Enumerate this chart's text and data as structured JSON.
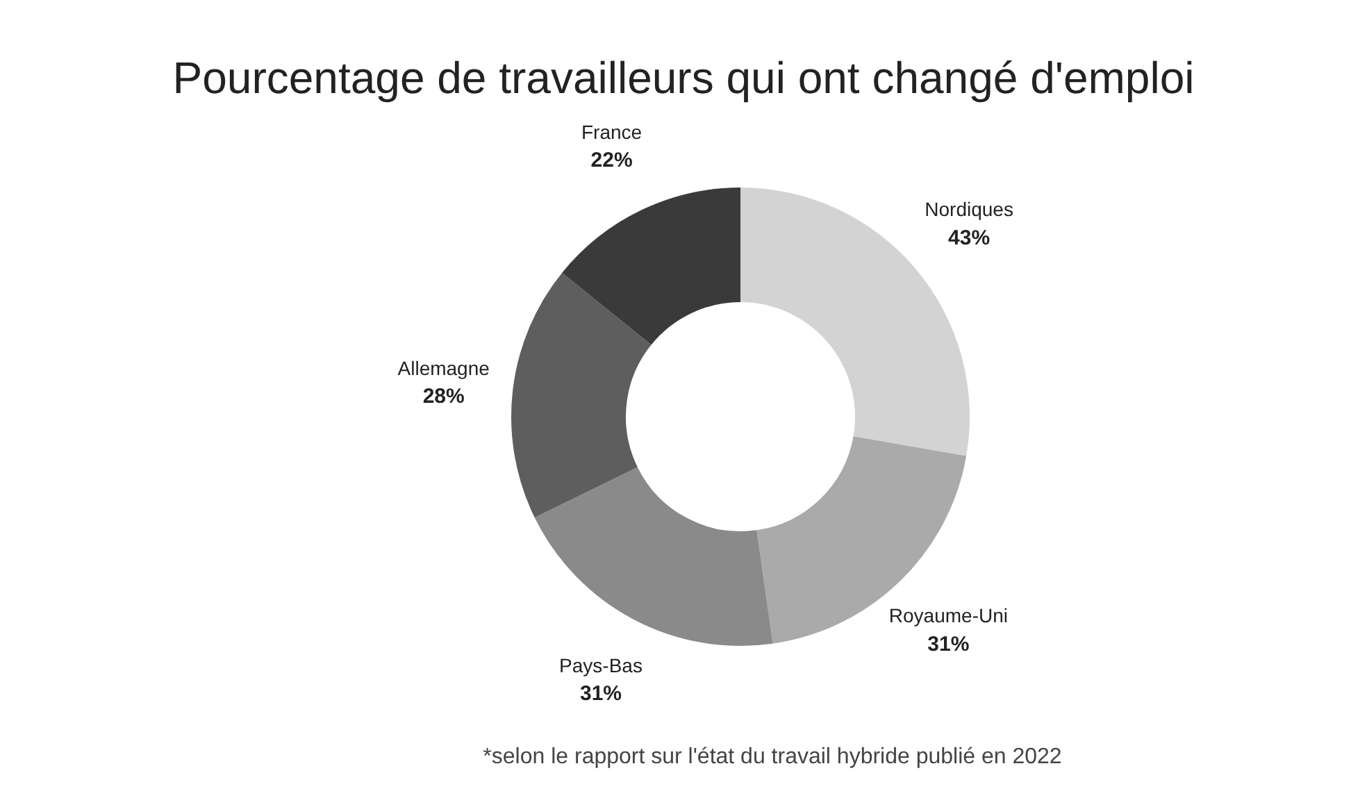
{
  "chart_data": {
    "type": "donut",
    "title": "Pourcentage de travailleurs qui ont changé d'emploi",
    "categories": [
      "Nordiques",
      "Royaume-Uni",
      "Pays-Bas",
      "Allemagne",
      "France"
    ],
    "values": [
      43,
      31,
      31,
      28,
      22
    ],
    "value_labels": [
      "43%",
      "31%",
      "31%",
      "28%",
      "22%"
    ],
    "colors": [
      "#d3d3d3",
      "#aaaaaa",
      "#8a8a8a",
      "#5e5e5e",
      "#3a3a3a"
    ],
    "annotations": [
      "*selon le rapport sur l'état du travail hybride publié en 2022"
    ],
    "legend": false
  }
}
